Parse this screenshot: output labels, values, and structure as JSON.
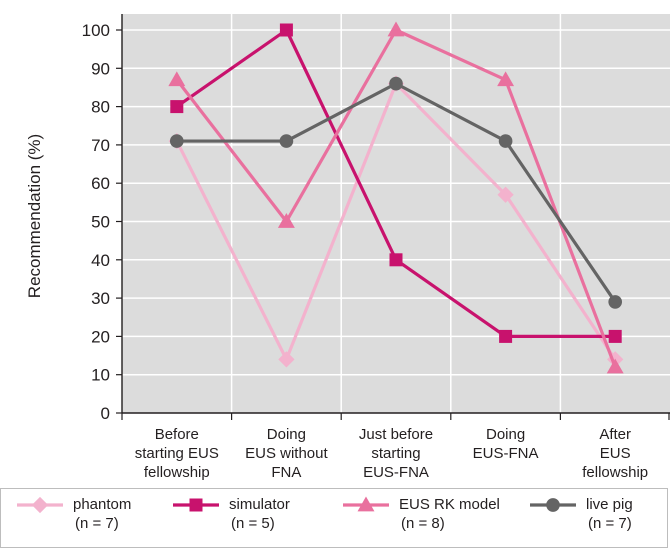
{
  "chart_data": {
    "type": "line",
    "ylabel": "Recommendation (%)",
    "xlabel": "",
    "ylim": [
      0,
      100
    ],
    "yticks": [
      0,
      10,
      20,
      30,
      40,
      50,
      60,
      70,
      80,
      90,
      100
    ],
    "grid": true,
    "categories": [
      [
        "Before",
        "starting EUS",
        "fellowship"
      ],
      [
        "Doing",
        "EUS without",
        "FNA"
      ],
      [
        "Just before",
        "starting",
        "EUS-FNA"
      ],
      [
        "Doing",
        "EUS-FNA"
      ],
      [
        "After",
        "EUS",
        "fellowship"
      ]
    ],
    "series": [
      {
        "name": "phantom",
        "n": "(n = 7)",
        "marker": "diamond",
        "color": "#f3b2cd",
        "values": [
          71,
          14,
          86,
          57,
          14
        ]
      },
      {
        "name": "simulator",
        "n": "(n = 5)",
        "marker": "square",
        "color": "#c8126d",
        "values": [
          80,
          100,
          40,
          20,
          20
        ]
      },
      {
        "name": "EUS RK model",
        "n": "(n = 8)",
        "marker": "triangle",
        "color": "#e9709e",
        "values": [
          87,
          50,
          100,
          87,
          12
        ]
      },
      {
        "name": "live pig",
        "n": "(n = 7)",
        "marker": "circle",
        "color": "#646464",
        "values": [
          71,
          71,
          86,
          71,
          29
        ]
      }
    ],
    "legend_position": "bottom"
  }
}
